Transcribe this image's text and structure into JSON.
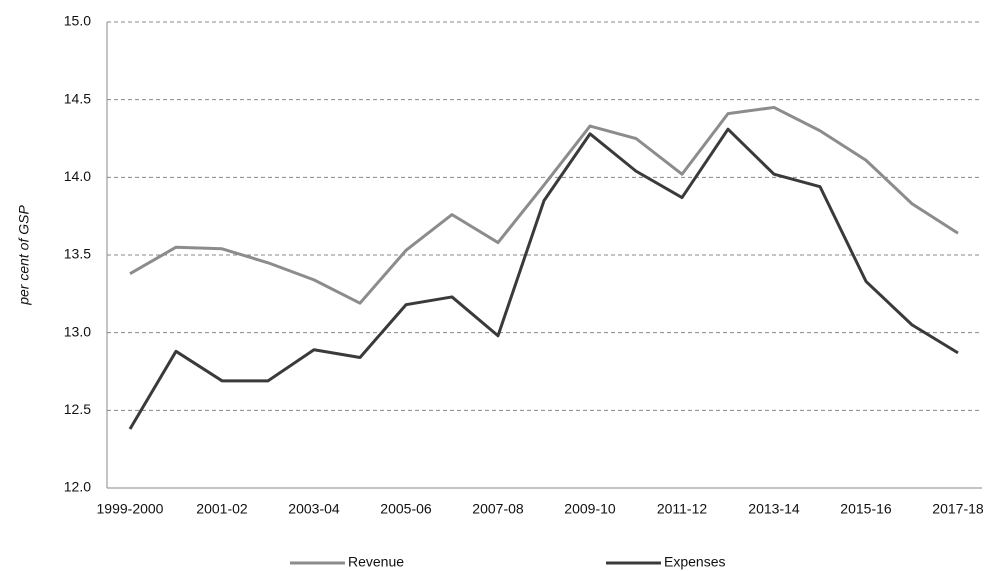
{
  "chart_data": {
    "type": "line",
    "y_label": "per cent of GSP",
    "categories": [
      "1999-2000",
      null,
      "2001-02",
      null,
      "2003-04",
      null,
      "2005-06",
      null,
      "2007-08",
      null,
      "2009-10",
      null,
      "2011-12",
      null,
      "2013-14",
      null,
      "2015-16",
      null,
      "2017-18"
    ],
    "series": [
      {
        "name": "Revenue",
        "color": "#8c8c8c",
        "values": [
          13.38,
          13.55,
          13.54,
          13.45,
          13.34,
          13.19,
          13.53,
          13.76,
          13.58,
          13.95,
          14.33,
          14.25,
          14.02,
          14.41,
          14.45,
          14.3,
          14.11,
          13.83,
          13.64
        ]
      },
      {
        "name": "Expenses",
        "color": "#3a3a3a",
        "values": [
          12.38,
          12.88,
          12.69,
          12.69,
          12.89,
          12.84,
          13.18,
          13.23,
          12.98,
          13.85,
          14.28,
          14.04,
          13.87,
          14.31,
          14.02,
          13.94,
          13.33,
          13.05,
          12.87
        ]
      }
    ],
    "ylim": [
      12,
      15
    ],
    "yticks": [
      {
        "value": 12,
        "label": "12.0"
      },
      {
        "value": 12.5,
        "label": "12.5"
      },
      {
        "value": 13,
        "label": "13.0"
      },
      {
        "value": 13.5,
        "label": "13.5"
      },
      {
        "value": 14,
        "label": "14.0"
      },
      {
        "value": 14.5,
        "label": "14.5"
      },
      {
        "value": 15,
        "label": "15.0"
      }
    ],
    "grid": true,
    "legend": "bottom"
  }
}
